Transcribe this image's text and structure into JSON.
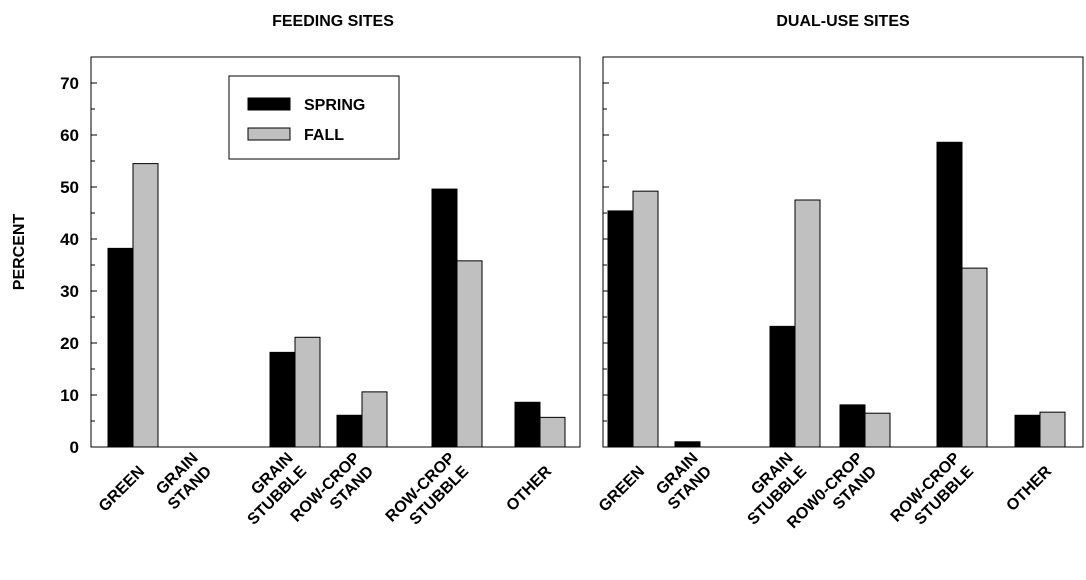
{
  "colors": {
    "spring": "#000000",
    "fall": "#c0c0c0"
  },
  "chart_data": [
    {
      "type": "bar",
      "title": "FEEDING SITES",
      "ylabel": "PERCENT",
      "ylim": [
        0,
        75
      ],
      "yticks": [
        0,
        10,
        20,
        30,
        40,
        50,
        60,
        70
      ],
      "legend": "top-center",
      "categories": [
        [
          "GREEN"
        ],
        [
          "GRAIN",
          "STAND"
        ],
        [
          "GRAIN",
          "STUBBLE"
        ],
        [
          "ROW-CROP",
          "STAND"
        ],
        [
          "ROW-CROP",
          "STUBBLE"
        ],
        [
          "OTHER"
        ]
      ],
      "series": [
        {
          "name": "SPRING",
          "values": [
            38.2,
            0,
            18.2,
            6.1,
            49.6,
            8.6
          ]
        },
        {
          "name": "FALL",
          "values": [
            54.5,
            0,
            21.1,
            10.6,
            35.8,
            5.7
          ]
        }
      ]
    },
    {
      "type": "bar",
      "title": "DUAL-USE SITES",
      "ylim": [
        0,
        75
      ],
      "categories": [
        [
          "GREEN"
        ],
        [
          "GRAIN",
          "STAND"
        ],
        [
          "GRAIN",
          "STUBBLE"
        ],
        [
          "ROW0-CROP",
          "STAND"
        ],
        [
          "ROW-CROP",
          "STUBBLE"
        ],
        [
          "OTHER"
        ]
      ],
      "series": [
        {
          "name": "SPRING",
          "values": [
            45.4,
            1.0,
            23.2,
            8.1,
            58.6,
            6.1
          ]
        },
        {
          "name": "FALL",
          "values": [
            49.2,
            0,
            47.5,
            6.5,
            34.4,
            6.7
          ]
        }
      ]
    }
  ]
}
